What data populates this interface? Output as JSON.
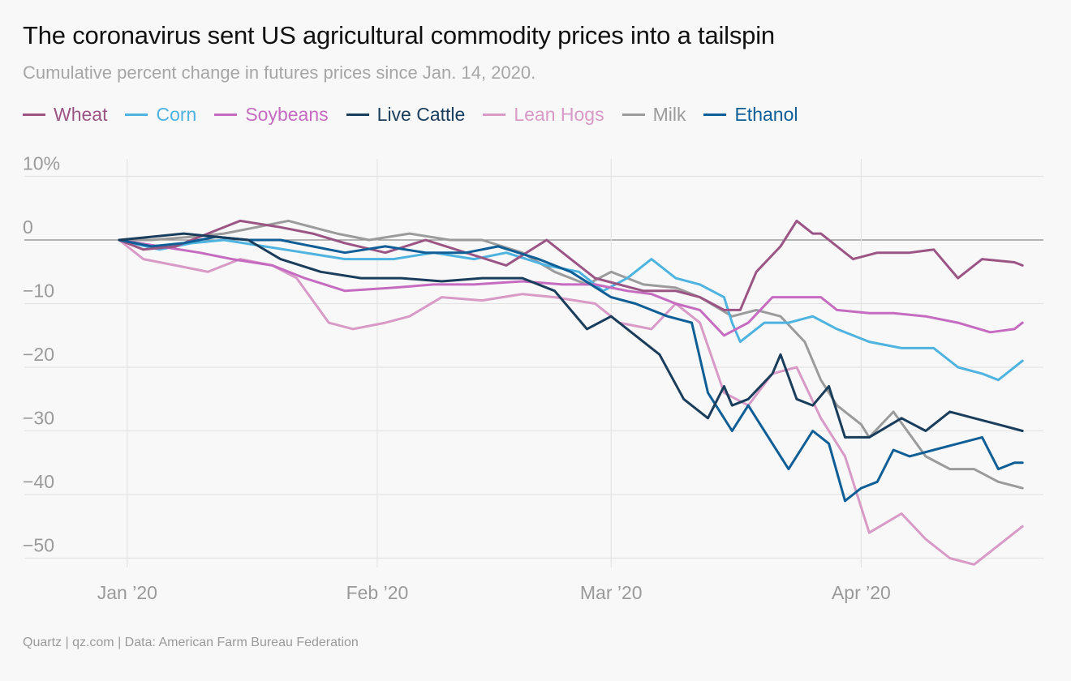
{
  "title": "The coronavirus sent US agricultural commodity prices into a tailspin",
  "subtitle": "Cumulative percent change in futures prices since Jan. 14, 2020.",
  "source": "Quartz | qz.com | Data: American Farm Bureau Federation",
  "chart_data": {
    "type": "line",
    "y_ticks": [
      10,
      0,
      -10,
      -20,
      -30,
      -40,
      -50
    ],
    "y_tick_labels": [
      "10%",
      "0",
      "−10",
      "−20",
      "−30",
      "−40",
      "−50"
    ],
    "ylim": [
      -52,
      10
    ],
    "x_ticks": [
      "2020-01-01",
      "2020-02-01",
      "2020-03-01",
      "2020-04-01"
    ],
    "x_tick_labels": [
      "Jan ’20",
      "Feb ’20",
      "Mar ’20",
      "Apr ’20"
    ],
    "xlim": [
      "2019-12-29",
      "2020-04-24"
    ],
    "grid": true,
    "legend": "top",
    "series": [
      {
        "name": "Wheat",
        "color": "#9b5585",
        "x": [
          "2019-12-31",
          "2020-01-03",
          "2020-01-07",
          "2020-01-11",
          "2020-01-15",
          "2020-01-20",
          "2020-01-24",
          "2020-01-28",
          "2020-02-02",
          "2020-02-07",
          "2020-02-12",
          "2020-02-17",
          "2020-02-22",
          "2020-02-25",
          "2020-02-28",
          "2020-03-02",
          "2020-03-05",
          "2020-03-09",
          "2020-03-12",
          "2020-03-15",
          "2020-03-17",
          "2020-03-19",
          "2020-03-22",
          "2020-03-24",
          "2020-03-26",
          "2020-03-27",
          "2020-03-31",
          "2020-04-03",
          "2020-04-07",
          "2020-04-10",
          "2020-04-13",
          "2020-04-16",
          "2020-04-20",
          "2020-04-21"
        ],
        "y": [
          0,
          -1.5,
          -1,
          1,
          3,
          2,
          1,
          -0.5,
          -2,
          0,
          -2,
          -4,
          0,
          -3,
          -6,
          -7,
          -8,
          -8,
          -9,
          -11,
          -11,
          -5,
          -1,
          3,
          1,
          1,
          -3,
          -2,
          -2,
          -1.5,
          -6,
          -3,
          -3.5,
          -4
        ]
      },
      {
        "name": "Corn",
        "color": "#4fb3e0",
        "x": [
          "2019-12-31",
          "2020-01-05",
          "2020-01-09",
          "2020-01-13",
          "2020-01-18",
          "2020-01-23",
          "2020-01-28",
          "2020-02-03",
          "2020-02-08",
          "2020-02-13",
          "2020-02-17",
          "2020-02-22",
          "2020-02-26",
          "2020-02-29",
          "2020-03-03",
          "2020-03-06",
          "2020-03-09",
          "2020-03-12",
          "2020-03-15",
          "2020-03-16",
          "2020-03-17",
          "2020-03-20",
          "2020-03-23",
          "2020-03-26",
          "2020-03-29",
          "2020-04-02",
          "2020-04-06",
          "2020-04-10",
          "2020-04-13",
          "2020-04-16",
          "2020-04-18",
          "2020-04-21"
        ],
        "y": [
          0,
          -1.5,
          -0.5,
          0,
          -1,
          -2,
          -3,
          -3,
          -2,
          -3,
          -2,
          -4,
          -5,
          -8,
          -6,
          -3,
          -6,
          -7,
          -9,
          -13,
          -16,
          -13,
          -13,
          -12,
          -14,
          -16,
          -17,
          -17,
          -20,
          -21,
          -22,
          -19
        ]
      },
      {
        "name": "Soybeans",
        "color": "#c56cc1",
        "x": [
          "2019-12-31",
          "2020-01-05",
          "2020-01-10",
          "2020-01-14",
          "2020-01-19",
          "2020-01-23",
          "2020-01-28",
          "2020-02-03",
          "2020-02-08",
          "2020-02-13",
          "2020-02-19",
          "2020-02-24",
          "2020-02-28",
          "2020-03-03",
          "2020-03-06",
          "2020-03-09",
          "2020-03-12",
          "2020-03-15",
          "2020-03-18",
          "2020-03-21",
          "2020-03-24",
          "2020-03-27",
          "2020-03-29",
          "2020-04-02",
          "2020-04-05",
          "2020-04-09",
          "2020-04-13",
          "2020-04-17",
          "2020-04-20",
          "2020-04-21"
        ],
        "y": [
          0,
          -1,
          -2,
          -3,
          -4,
          -6,
          -8,
          -7.5,
          -7,
          -7,
          -6.5,
          -7,
          -7,
          -8,
          -8.5,
          -10,
          -11,
          -15,
          -13,
          -9,
          -9,
          -9,
          -11,
          -11.5,
          -11.5,
          -12,
          -13,
          -14.5,
          -14,
          -13
        ]
      },
      {
        "name": "Live Cattle",
        "color": "#1a3d5c",
        "x": [
          "2019-12-31",
          "2020-01-04",
          "2020-01-08",
          "2020-01-12",
          "2020-01-16",
          "2020-01-20",
          "2020-01-25",
          "2020-01-30",
          "2020-02-04",
          "2020-02-09",
          "2020-02-14",
          "2020-02-19",
          "2020-02-23",
          "2020-02-27",
          "2020-03-01",
          "2020-03-04",
          "2020-03-07",
          "2020-03-10",
          "2020-03-13",
          "2020-03-15",
          "2020-03-16",
          "2020-03-18",
          "2020-03-21",
          "2020-03-22",
          "2020-03-24",
          "2020-03-26",
          "2020-03-28",
          "2020-03-30",
          "2020-04-02",
          "2020-04-06",
          "2020-04-09",
          "2020-04-12",
          "2020-04-15",
          "2020-04-18",
          "2020-04-21"
        ],
        "y": [
          0,
          0.5,
          1,
          0.5,
          0,
          -3,
          -5,
          -6,
          -6,
          -6.5,
          -6,
          -6,
          -8,
          -14,
          -12,
          -15,
          -18,
          -25,
          -28,
          -23,
          -26,
          -25,
          -21,
          -18,
          -25,
          -26,
          -23,
          -31,
          -31,
          -28,
          -30,
          -27,
          -28,
          -29,
          -30
        ]
      },
      {
        "name": "Lean Hogs",
        "color": "#d89ac6",
        "x": [
          "2019-12-31",
          "2020-01-03",
          "2020-01-07",
          "2020-01-11",
          "2020-01-15",
          "2020-01-19",
          "2020-01-22",
          "2020-01-26",
          "2020-01-29",
          "2020-02-02",
          "2020-02-05",
          "2020-02-09",
          "2020-02-14",
          "2020-02-19",
          "2020-02-23",
          "2020-02-28",
          "2020-03-02",
          "2020-03-06",
          "2020-03-09",
          "2020-03-12",
          "2020-03-15",
          "2020-03-18",
          "2020-03-21",
          "2020-03-24",
          "2020-03-27",
          "2020-03-30",
          "2020-04-02",
          "2020-04-06",
          "2020-04-09",
          "2020-04-12",
          "2020-04-15",
          "2020-04-18",
          "2020-04-21"
        ],
        "y": [
          0,
          -3,
          -4,
          -5,
          -3,
          -4,
          -6,
          -13,
          -14,
          -13,
          -12,
          -9,
          -9.5,
          -8.5,
          -9,
          -10,
          -13,
          -14,
          -10,
          -13,
          -24,
          -26,
          -21,
          -20,
          -28,
          -34,
          -46,
          -43,
          -47,
          -50,
          -51,
          -48,
          -45
        ]
      },
      {
        "name": "Milk",
        "color": "#9b9b9b",
        "x": [
          "2019-12-31",
          "2020-01-04",
          "2020-01-09",
          "2020-01-13",
          "2020-01-17",
          "2020-01-21",
          "2020-01-24",
          "2020-01-27",
          "2020-01-31",
          "2020-02-05",
          "2020-02-10",
          "2020-02-14",
          "2020-02-19",
          "2020-02-23",
          "2020-02-27",
          "2020-03-01",
          "2020-03-05",
          "2020-03-09",
          "2020-03-12",
          "2020-03-16",
          "2020-03-19",
          "2020-03-22",
          "2020-03-25",
          "2020-03-27",
          "2020-03-29",
          "2020-04-01",
          "2020-04-02",
          "2020-04-05",
          "2020-04-09",
          "2020-04-12",
          "2020-04-15",
          "2020-04-18",
          "2020-04-21"
        ],
        "y": [
          0,
          0,
          0.5,
          1,
          2,
          3,
          2,
          1,
          0,
          1,
          0,
          0,
          -2,
          -5,
          -7,
          -5,
          -7,
          -7.5,
          -9,
          -12,
          -11,
          -12,
          -16,
          -22,
          -26,
          -29,
          -31,
          -27,
          -34,
          -36,
          -36,
          -38,
          -39
        ]
      },
      {
        "name": "Ethanol",
        "color": "#0f5e96",
        "x": [
          "2019-12-31",
          "2020-01-04",
          "2020-01-08",
          "2020-01-12",
          "2020-01-16",
          "2020-01-20",
          "2020-01-24",
          "2020-01-28",
          "2020-02-02",
          "2020-02-07",
          "2020-02-12",
          "2020-02-16",
          "2020-02-21",
          "2020-02-25",
          "2020-03-01",
          "2020-03-04",
          "2020-03-08",
          "2020-03-11",
          "2020-03-13",
          "2020-03-16",
          "2020-03-18",
          "2020-03-21",
          "2020-03-23",
          "2020-03-26",
          "2020-03-28",
          "2020-03-30",
          "2020-04-01",
          "2020-04-03",
          "2020-04-05",
          "2020-04-07",
          "2020-04-10",
          "2020-04-13",
          "2020-04-16",
          "2020-04-18",
          "2020-04-20",
          "2020-04-21"
        ],
        "y": [
          0,
          -1,
          -0.5,
          0.5,
          0,
          0,
          -1,
          -2,
          -1,
          -2,
          -2,
          -1,
          -3,
          -5,
          -9,
          -10,
          -12,
          -13,
          -24,
          -30,
          -26,
          -32,
          -36,
          -30,
          -32,
          -41,
          -39,
          -38,
          -33,
          -34,
          -33,
          -32,
          -31,
          -36,
          -35,
          -35
        ]
      }
    ]
  }
}
